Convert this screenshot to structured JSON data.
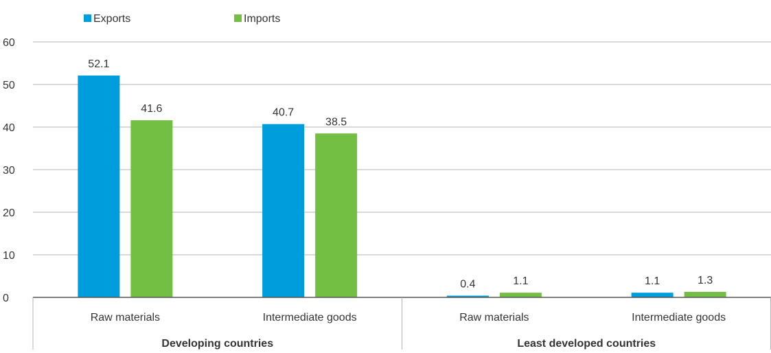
{
  "chart_data": {
    "type": "bar",
    "title": "",
    "xlabel": "",
    "ylabel": "",
    "ylim": [
      0,
      60
    ],
    "yticks": [
      0,
      10,
      20,
      30,
      40,
      50,
      60
    ],
    "grid": true,
    "legend_position": "top-left",
    "groups": [
      {
        "label": "Developing countries",
        "categories": [
          "Raw materials",
          "Intermediate goods"
        ]
      },
      {
        "label": "Least developed countries",
        "categories": [
          "Raw materials",
          "Intermediate goods"
        ]
      }
    ],
    "series": [
      {
        "name": "Exports",
        "color": "#009ddc",
        "values": [
          52.1,
          40.7,
          0.4,
          1.1
        ]
      },
      {
        "name": "Imports",
        "color": "#72bf44",
        "values": [
          41.6,
          38.5,
          1.1,
          1.3
        ]
      }
    ],
    "colors": {
      "grid": "#b3b3b3",
      "axis": "#555555",
      "text": "#333333"
    }
  }
}
